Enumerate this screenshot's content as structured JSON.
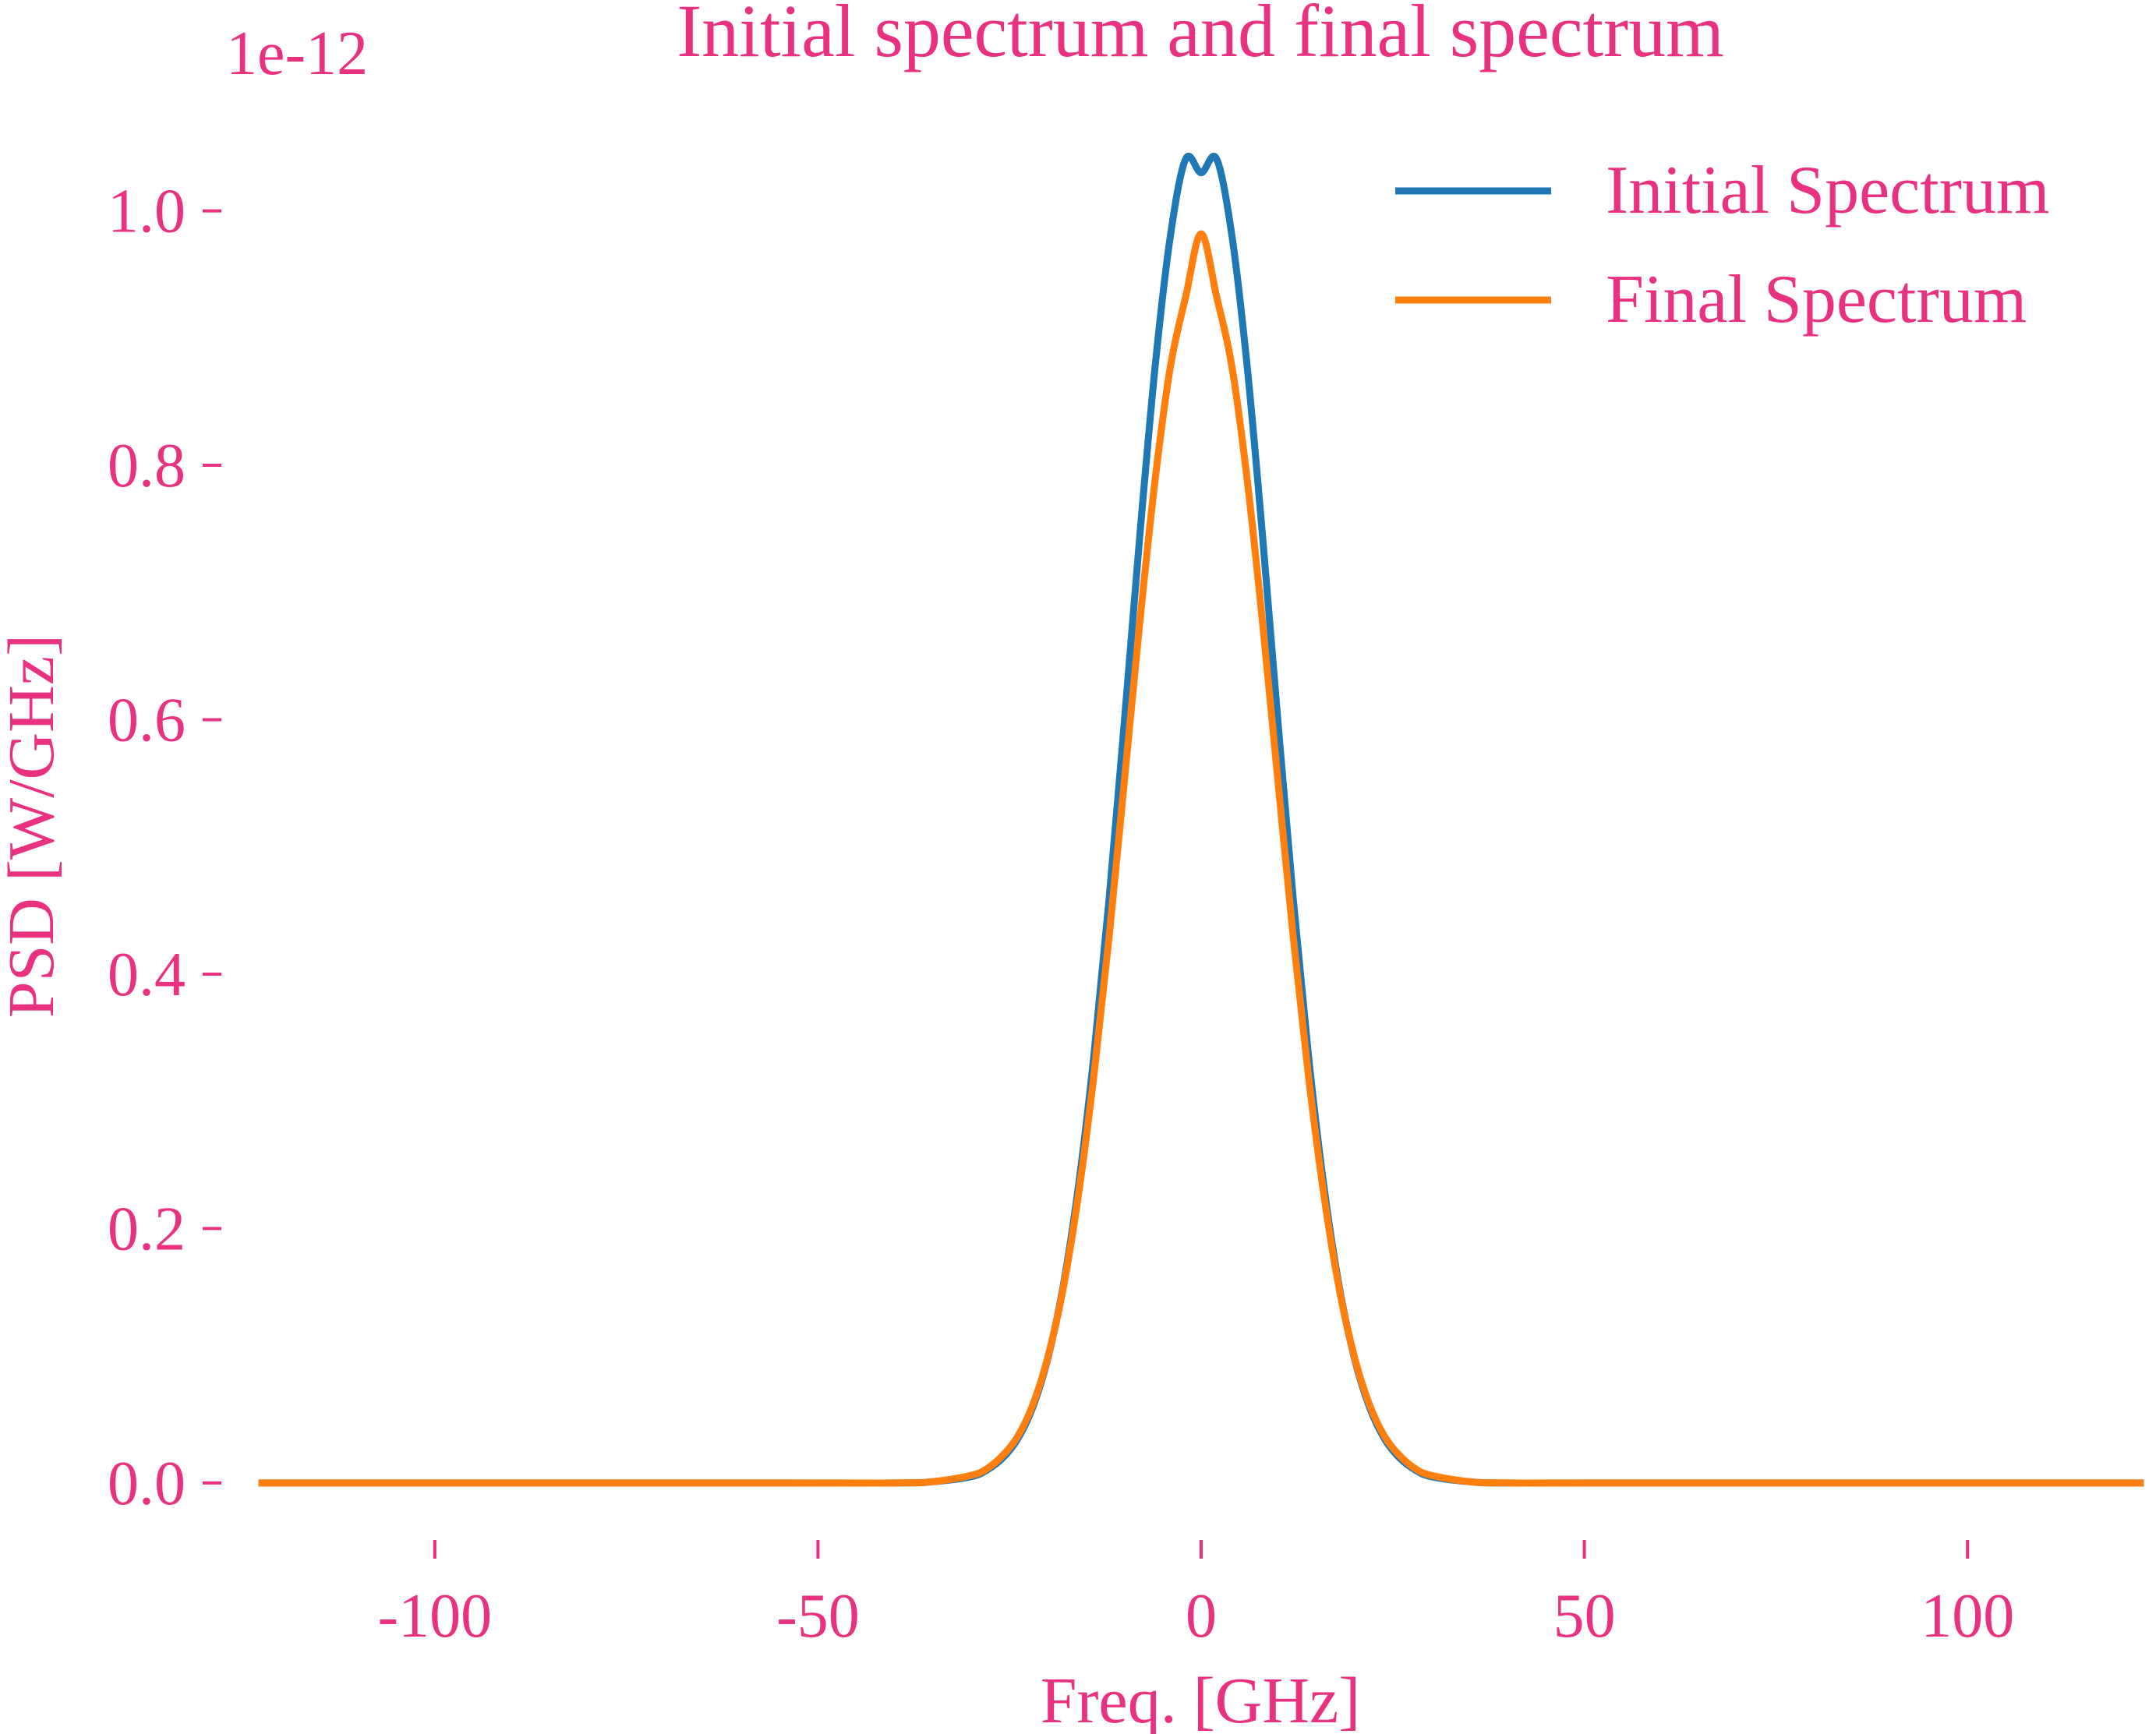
{
  "chart_data": {
    "type": "line",
    "title": "Initial spectrum and final spectrum",
    "xlabel": "Freq. [GHz]",
    "ylabel": "PSD [W/GHz]",
    "y_offset_label": "1e-12",
    "xlim": [
      -125,
      125
    ],
    "ylim": [
      -0.035,
      1.08
    ],
    "x_ticks": [
      -100,
      -50,
      0,
      50,
      100
    ],
    "x_tick_labels": [
      "-100",
      "-50",
      "0",
      "50",
      "100"
    ],
    "y_ticks": [
      0.0,
      0.2,
      0.4,
      0.6,
      0.8,
      1.0
    ],
    "y_tick_labels": [
      "0.0",
      "0.2",
      "0.4",
      "0.6",
      "0.8",
      "1.0"
    ],
    "grid": false,
    "legend_position": "top-right",
    "series": [
      {
        "name": "Initial Spectrum",
        "color": "#1f77b4",
        "x": [
          -123,
          -60,
          -40,
          -35,
          -30,
          -28,
          -26,
          -24,
          -22,
          -20,
          -18,
          -16,
          -14,
          -12,
          -10,
          -8,
          -6,
          -4,
          -2,
          0,
          2,
          4,
          6,
          8,
          10,
          12,
          14,
          16,
          18,
          20,
          22,
          24,
          26,
          28,
          30,
          35,
          40,
          60,
          123
        ],
        "y": [
          0.0,
          0.0,
          0.0,
          0.001,
          0.005,
          0.01,
          0.019,
          0.034,
          0.059,
          0.098,
          0.155,
          0.234,
          0.336,
          0.46,
          0.6,
          0.745,
          0.878,
          0.981,
          1.041,
          1.03,
          1.041,
          0.981,
          0.878,
          0.745,
          0.6,
          0.46,
          0.336,
          0.234,
          0.155,
          0.098,
          0.059,
          0.034,
          0.019,
          0.01,
          0.005,
          0.001,
          0.0,
          0.0,
          0.0
        ]
      },
      {
        "name": "Final Spectrum",
        "color": "#ff7f0e",
        "x": [
          -123,
          -60,
          -40,
          -35,
          -30,
          -28,
          -26,
          -24,
          -22,
          -20,
          -18,
          -16,
          -14,
          -12,
          -10,
          -8,
          -6,
          -4,
          -2,
          0,
          2,
          4,
          6,
          8,
          10,
          12,
          14,
          16,
          18,
          20,
          22,
          24,
          26,
          28,
          30,
          35,
          40,
          60,
          123
        ],
        "y": [
          0.0,
          0.0,
          0.0,
          0.001,
          0.006,
          0.011,
          0.021,
          0.036,
          0.061,
          0.099,
          0.153,
          0.227,
          0.32,
          0.43,
          0.553,
          0.677,
          0.789,
          0.878,
          0.933,
          0.982,
          0.933,
          0.878,
          0.789,
          0.677,
          0.553,
          0.43,
          0.32,
          0.227,
          0.153,
          0.099,
          0.061,
          0.036,
          0.021,
          0.011,
          0.006,
          0.001,
          0.0,
          0.0,
          0.0
        ]
      }
    ],
    "colors": {
      "text": "#e8317f",
      "tick": "#e8317f"
    }
  }
}
